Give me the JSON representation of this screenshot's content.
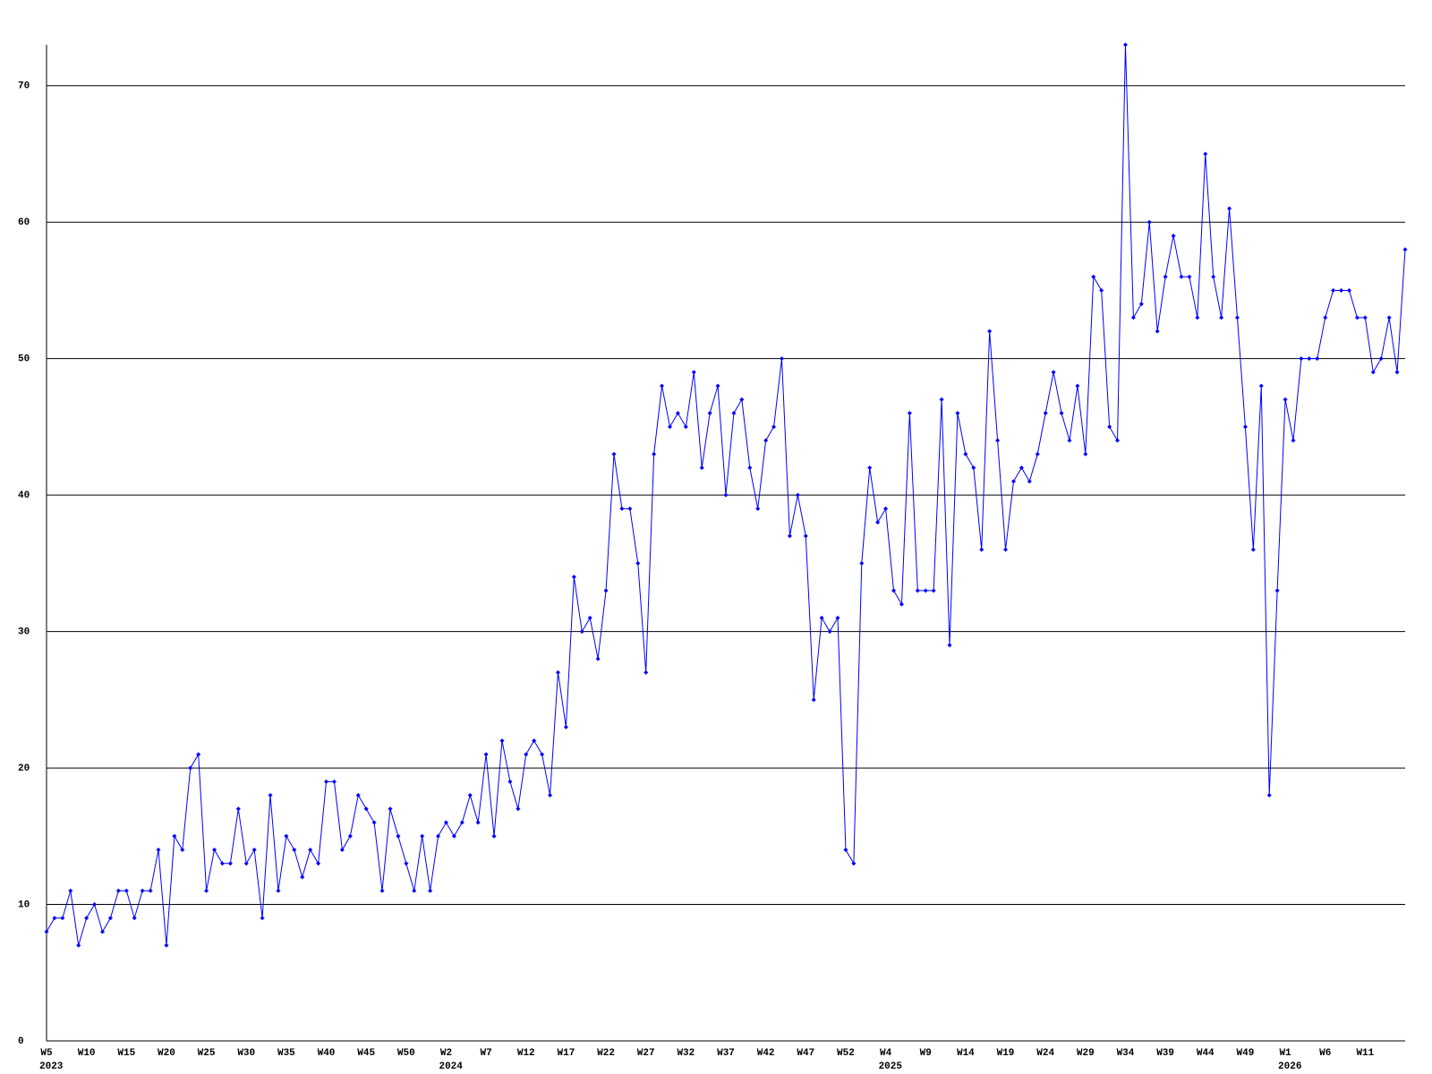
{
  "chart_data": {
    "type": "line",
    "color": "#0000ff",
    "grid": true,
    "ylim": [
      0,
      73
    ],
    "yticks": [
      0,
      10,
      20,
      30,
      40,
      50,
      60,
      70
    ],
    "categories": [
      "W5",
      null,
      null,
      null,
      null,
      "W10",
      null,
      null,
      null,
      null,
      "W15",
      null,
      null,
      null,
      null,
      "W20",
      null,
      null,
      null,
      null,
      "W25",
      null,
      null,
      null,
      null,
      "W30",
      null,
      null,
      null,
      null,
      "W35",
      null,
      null,
      null,
      null,
      "W40",
      null,
      null,
      null,
      null,
      "W45",
      null,
      null,
      null,
      null,
      "W50",
      null,
      null,
      null,
      null,
      "W2",
      null,
      null,
      null,
      null,
      "W7",
      null,
      null,
      null,
      null,
      "W12",
      null,
      null,
      null,
      null,
      "W17",
      null,
      null,
      null,
      null,
      "W22",
      null,
      null,
      null,
      null,
      "W27",
      null,
      null,
      null,
      null,
      "W32",
      null,
      null,
      null,
      null,
      "W37",
      null,
      null,
      null,
      null,
      "W42",
      null,
      null,
      null,
      null,
      "W47",
      null,
      null,
      null,
      null,
      "W52",
      null,
      null,
      null,
      null,
      "W4",
      null,
      null,
      null,
      null,
      "W9",
      null,
      null,
      null,
      null,
      "W14",
      null,
      null,
      null,
      null,
      "W19",
      null,
      null,
      null,
      null,
      "W24",
      null,
      null,
      null,
      null,
      "W29",
      null,
      null,
      null,
      null,
      "W34",
      null,
      null,
      null,
      null,
      "W39",
      null,
      null,
      null,
      null,
      "W44",
      null,
      null,
      null,
      null,
      "W49",
      null,
      null,
      null,
      null,
      "W1",
      null,
      null,
      null,
      null,
      "W6",
      null,
      null,
      null,
      null,
      "W11",
      null,
      null,
      null,
      null,
      null
    ],
    "years": [
      "2023",
      null,
      null,
      null,
      null,
      null,
      null,
      null,
      null,
      null,
      null,
      null,
      null,
      null,
      null,
      null,
      null,
      null,
      null,
      null,
      null,
      null,
      null,
      null,
      null,
      null,
      null,
      null,
      null,
      null,
      null,
      null,
      null,
      null,
      null,
      null,
      null,
      null,
      null,
      null,
      null,
      null,
      null,
      null,
      null,
      null,
      null,
      null,
      null,
      null,
      "2024",
      null,
      null,
      null,
      null,
      null,
      null,
      null,
      null,
      null,
      null,
      null,
      null,
      null,
      null,
      null,
      null,
      null,
      null,
      null,
      null,
      null,
      null,
      null,
      null,
      null,
      null,
      null,
      null,
      null,
      null,
      null,
      null,
      null,
      null,
      null,
      null,
      null,
      null,
      null,
      null,
      null,
      null,
      null,
      null,
      null,
      null,
      null,
      null,
      null,
      null,
      null,
      null,
      null,
      null,
      "2025",
      null,
      null,
      null,
      null,
      null,
      null,
      null,
      null,
      null,
      null,
      null,
      null,
      null,
      null,
      null,
      null,
      null,
      null,
      null,
      null,
      null,
      null,
      null,
      null,
      null,
      null,
      null,
      null,
      null,
      null,
      null,
      null,
      null,
      null,
      null,
      null,
      null,
      null,
      null,
      null,
      null,
      null,
      null,
      null,
      null,
      null,
      null,
      null,
      null,
      "2026",
      null,
      null,
      null,
      null,
      null,
      null,
      null,
      null,
      null,
      null,
      null,
      null,
      null,
      null,
      null
    ],
    "values": [
      8,
      9,
      9,
      11,
      7,
      9,
      10,
      8,
      9,
      11,
      11,
      9,
      11,
      11,
      14,
      7,
      15,
      14,
      20,
      21,
      11,
      14,
      13,
      13,
      17,
      13,
      14,
      9,
      18,
      11,
      15,
      14,
      12,
      14,
      13,
      19,
      19,
      14,
      15,
      18,
      17,
      16,
      11,
      17,
      15,
      13,
      11,
      15,
      11,
      15,
      16,
      15,
      16,
      18,
      16,
      21,
      15,
      22,
      19,
      17,
      21,
      22,
      21,
      18,
      27,
      23,
      34,
      30,
      31,
      28,
      33,
      43,
      39,
      39,
      35,
      27,
      43,
      48,
      45,
      46,
      45,
      49,
      42,
      46,
      48,
      40,
      46,
      47,
      42,
      39,
      44,
      45,
      50,
      37,
      40,
      37,
      25,
      31,
      30,
      31,
      14,
      13,
      35,
      42,
      38,
      39,
      33,
      32,
      46,
      33,
      33,
      33,
      47,
      29,
      46,
      43,
      42,
      36,
      52,
      44,
      36,
      41,
      42,
      41,
      43,
      46,
      49,
      46,
      44,
      48,
      43,
      56,
      55,
      45,
      44,
      73,
      53,
      54,
      60,
      52,
      56,
      59,
      56,
      56,
      53,
      65,
      56,
      53,
      61,
      53,
      45,
      36,
      48,
      18,
      33,
      47,
      44,
      50,
      50,
      50,
      53,
      55,
      55,
      55,
      53,
      53,
      49,
      50,
      53,
      49,
      58
    ]
  }
}
